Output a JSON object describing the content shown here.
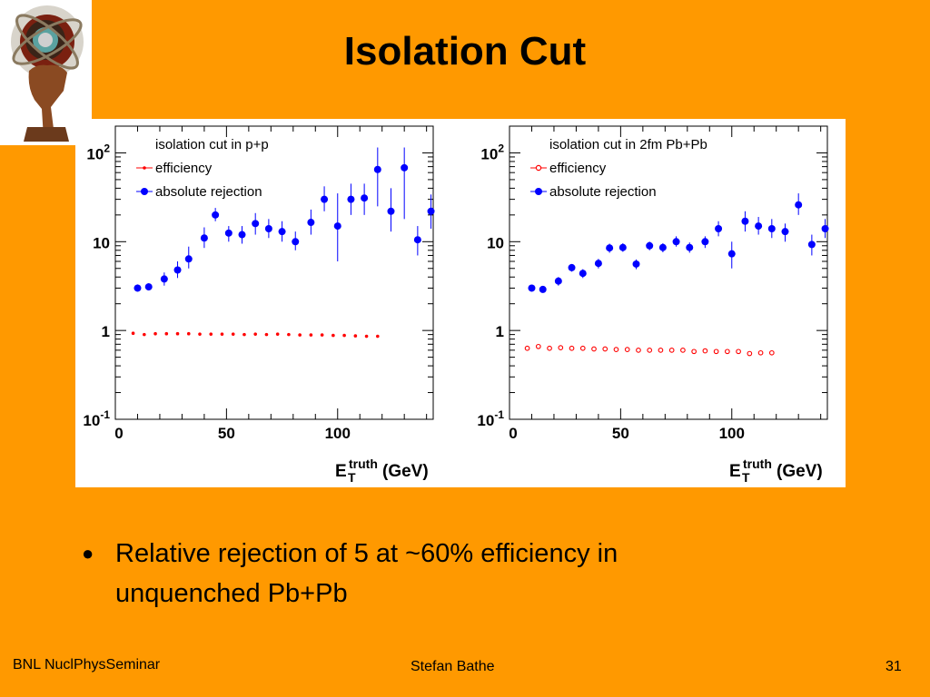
{
  "slide": {
    "title": "Isolation Cut",
    "bullet": "Relative rejection of 5 at ~60% efficiency in unquenched Pb+Pb",
    "footer_left": "BNL NuclPhysSeminar",
    "footer_center": "Stefan Bathe",
    "footer_right": "31",
    "background_color": "#FF9900",
    "logo_icon": "atlas-globe-logo-icon"
  },
  "chart_data": [
    {
      "type": "scatter",
      "title": "",
      "xlabel_main": "E",
      "xlabel_sub": "T",
      "xlabel_sup": "truth",
      "xlabel_unit": "(GeV)",
      "ylabel": "",
      "xlim": [
        0,
        143
      ],
      "ylim": [
        0.1,
        200
      ],
      "y_log": true,
      "x_ticks": [
        "0",
        "50",
        "100"
      ],
      "y_ticks": [
        {
          "value": 0.1,
          "base": "10",
          "exp": "-1"
        },
        {
          "value": 1,
          "base": "1",
          "exp": ""
        },
        {
          "value": 10,
          "base": "10",
          "exp": ""
        },
        {
          "value": 100,
          "base": "10",
          "exp": "2"
        }
      ],
      "legend_title": "isolation cut in p+p",
      "legend_position": "top-left",
      "series": [
        {
          "name": "efficiency",
          "color": "#ff0000",
          "marker": "dot",
          "x": [
            8,
            13,
            18,
            23,
            28,
            33,
            38,
            43,
            48,
            53,
            58,
            63,
            68,
            73,
            78,
            83,
            88,
            93,
            98,
            103,
            108,
            113,
            118
          ],
          "y": [
            0.93,
            0.9,
            0.92,
            0.92,
            0.92,
            0.92,
            0.91,
            0.91,
            0.91,
            0.91,
            0.9,
            0.91,
            0.9,
            0.91,
            0.9,
            0.89,
            0.89,
            0.89,
            0.88,
            0.88,
            0.87,
            0.86,
            0.86
          ]
        },
        {
          "name": "absolute rejection",
          "color": "#0000ff",
          "marker": "filled-circle",
          "x": [
            10,
            15,
            22,
            28,
            33,
            40,
            45,
            51,
            57,
            63,
            69,
            75,
            81,
            88,
            94,
            100,
            106,
            112,
            118,
            124,
            130,
            136,
            142
          ],
          "y": [
            3.0,
            3.1,
            3.8,
            4.8,
            6.4,
            11,
            20,
            12.5,
            12,
            16,
            14,
            13,
            10,
            16.5,
            30,
            15,
            30,
            31,
            65,
            22,
            68,
            10.5,
            22
          ],
          "err_low": [
            2.8,
            2.9,
            3.2,
            3.9,
            5.0,
            8.5,
            17,
            10,
            9.5,
            12,
            11,
            10,
            8,
            12,
            22,
            6,
            20,
            20,
            25,
            13,
            18,
            7,
            14
          ],
          "err_high": [
            3.3,
            3.4,
            4.5,
            6.0,
            8.8,
            14.5,
            24,
            15,
            15,
            21,
            18,
            17,
            13,
            23,
            42,
            35,
            45,
            45,
            115,
            40,
            115,
            15,
            34
          ]
        }
      ]
    },
    {
      "type": "scatter",
      "title": "",
      "xlabel_main": "E",
      "xlabel_sub": "T",
      "xlabel_sup": "truth",
      "xlabel_unit": "(GeV)",
      "ylabel": "",
      "xlim": [
        0,
        143
      ],
      "ylim": [
        0.1,
        200
      ],
      "y_log": true,
      "x_ticks": [
        "0",
        "50",
        "100"
      ],
      "y_ticks": [
        {
          "value": 0.1,
          "base": "10",
          "exp": "-1"
        },
        {
          "value": 1,
          "base": "1",
          "exp": ""
        },
        {
          "value": 10,
          "base": "10",
          "exp": ""
        },
        {
          "value": 100,
          "base": "10",
          "exp": "2"
        }
      ],
      "legend_title": "isolation cut in 2fm Pb+Pb",
      "legend_position": "top-left",
      "series": [
        {
          "name": "efficiency",
          "color": "#ff0000",
          "marker": "open-circle",
          "x": [
            8,
            13,
            18,
            23,
            28,
            33,
            38,
            43,
            48,
            53,
            58,
            63,
            68,
            73,
            78,
            83,
            88,
            93,
            98,
            103,
            108,
            113,
            118
          ],
          "y": [
            0.63,
            0.66,
            0.63,
            0.64,
            0.63,
            0.63,
            0.62,
            0.62,
            0.61,
            0.61,
            0.6,
            0.6,
            0.6,
            0.6,
            0.6,
            0.58,
            0.59,
            0.58,
            0.58,
            0.58,
            0.55,
            0.56,
            0.56
          ]
        },
        {
          "name": "absolute rejection",
          "color": "#0000ff",
          "marker": "filled-circle",
          "x": [
            10,
            15,
            22,
            28,
            33,
            40,
            45,
            51,
            57,
            63,
            69,
            75,
            81,
            88,
            94,
            100,
            106,
            112,
            118,
            124,
            130,
            136,
            142
          ],
          "y": [
            3.0,
            2.9,
            3.6,
            5.1,
            4.4,
            5.7,
            8.5,
            8.6,
            5.6,
            9.0,
            8.6,
            10,
            8.6,
            10,
            14,
            7.3,
            17,
            15,
            14,
            13,
            26,
            9.3,
            14
          ],
          "err_low": [
            2.8,
            2.7,
            3.2,
            4.6,
            3.9,
            5.0,
            7.5,
            7.7,
            4.9,
            8.0,
            7.6,
            8.8,
            7.5,
            8.5,
            11.5,
            5.0,
            13,
            12,
            11,
            10,
            20,
            7,
            11
          ],
          "err_high": [
            3.2,
            3.1,
            4.0,
            5.6,
            4.9,
            6.4,
            9.5,
            9.6,
            6.3,
            10,
            9.6,
            11.5,
            9.8,
            11.5,
            17,
            10,
            22,
            19,
            18,
            16,
            35,
            12,
            18
          ]
        }
      ]
    }
  ]
}
